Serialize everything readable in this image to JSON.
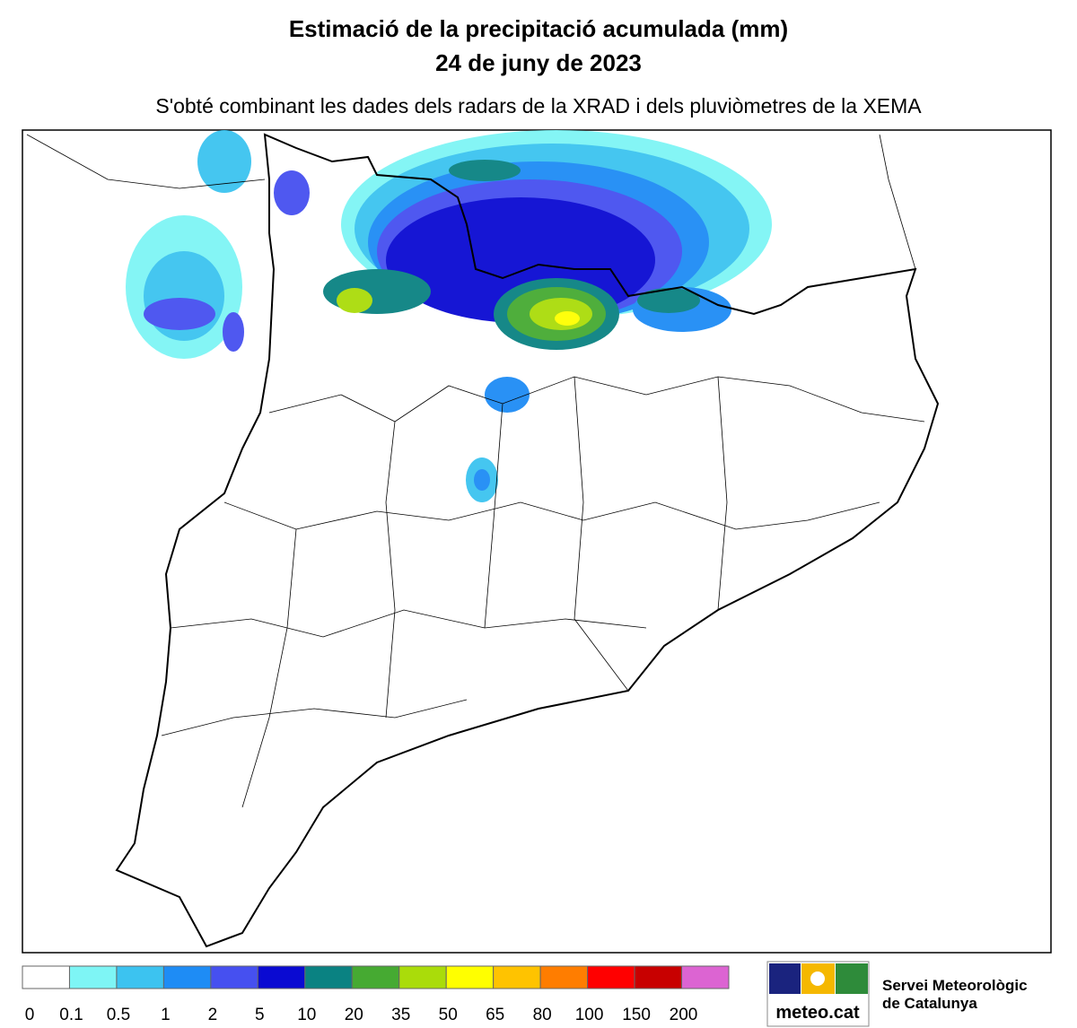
{
  "header": {
    "title": "Estimació de la precipitació acumulada (mm)",
    "date": "24 de juny de 2023",
    "subtitle": "S'obté combinant les dades dels radars de la XRAD i dels pluviòmetres de la XEMA"
  },
  "legend": {
    "labels": [
      "0",
      "0.1",
      "0.5",
      "1",
      "2",
      "5",
      "10",
      "20",
      "35",
      "50",
      "65",
      "80",
      "100",
      "150",
      "200"
    ],
    "colors": [
      "#ffffff",
      "#7ef5f5",
      "#3cc3f0",
      "#1e8cf5",
      "#4650f0",
      "#0a0ad2",
      "#0a8282",
      "#46aa32",
      "#aadc0a",
      "#ffff00",
      "#ffc300",
      "#ff7d00",
      "#ff0000",
      "#c80000",
      "#dc64d2"
    ]
  },
  "logo": {
    "brand": "meteo.cat",
    "org_line1": "Servei Meteorològic",
    "org_line2": "de Catalunya"
  }
}
